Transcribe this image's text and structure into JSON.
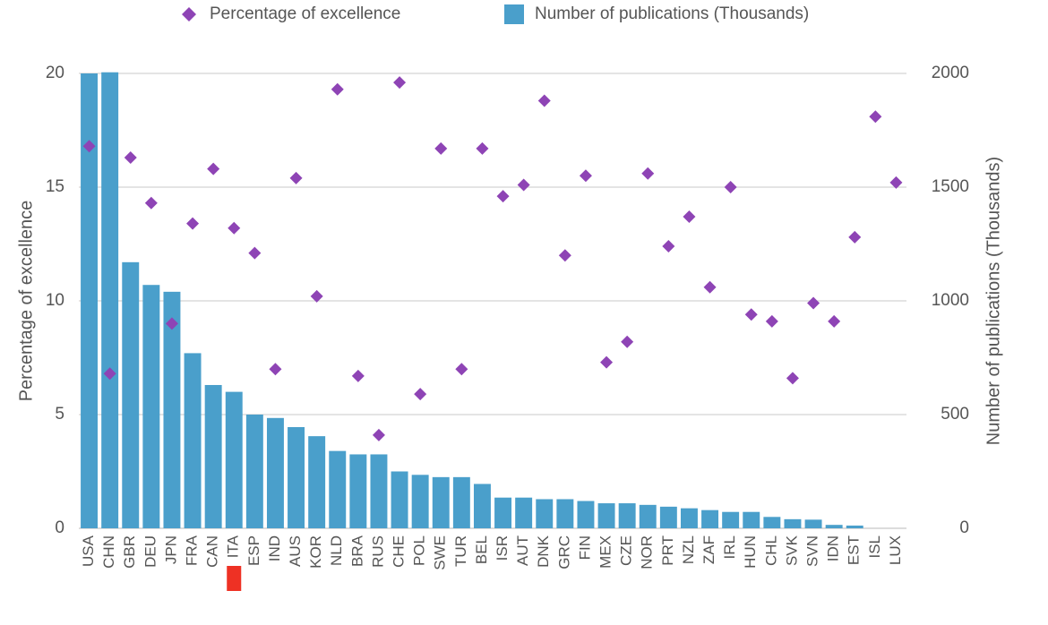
{
  "chart_data": {
    "type": "bar",
    "categories": [
      "USA",
      "CHN",
      "GBR",
      "DEU",
      "JPN",
      "FRA",
      "CAN",
      "ITA",
      "ESP",
      "IND",
      "AUS",
      "KOR",
      "NLD",
      "BRA",
      "RUS",
      "CHE",
      "POL",
      "SWE",
      "TUR",
      "BEL",
      "ISR",
      "AUT",
      "DNK",
      "GRC",
      "FIN",
      "MEX",
      "CZE",
      "NOR",
      "PRT",
      "NZL",
      "ZAF",
      "IRL",
      "HUN",
      "CHL",
      "SVK",
      "SVN",
      "IDN",
      "EST",
      "ISL",
      "LUX"
    ],
    "series": [
      {
        "name": "Number of publications (Thousands)",
        "kind": "bar",
        "axis": "right",
        "color": "#4A9FCB",
        "values": [
          2000,
          2005,
          1170,
          1070,
          1040,
          770,
          630,
          600,
          500,
          485,
          445,
          405,
          340,
          325,
          325,
          250,
          235,
          225,
          225,
          195,
          135,
          135,
          128,
          128,
          120,
          110,
          110,
          103,
          95,
          88,
          80,
          72,
          72,
          50,
          40,
          38,
          15,
          12,
          0,
          0
        ]
      },
      {
        "name": "Percentage of excellence",
        "kind": "scatter",
        "axis": "left",
        "color": "#8E44B5",
        "values": [
          16.8,
          6.8,
          16.3,
          14.3,
          9.0,
          13.4,
          15.8,
          13.2,
          12.1,
          7.0,
          15.4,
          10.2,
          19.3,
          6.7,
          4.1,
          19.6,
          5.9,
          16.7,
          7.0,
          16.7,
          14.6,
          15.1,
          18.8,
          12.0,
          15.5,
          7.3,
          8.2,
          15.6,
          12.4,
          13.7,
          10.6,
          15.0,
          9.4,
          9.1,
          6.6,
          9.9,
          9.1,
          12.8,
          18.1,
          15.2
        ]
      }
    ],
    "left_axis": {
      "label": "Percentage of excellence",
      "ylim": [
        0,
        20
      ],
      "ticks": [
        0,
        5,
        10,
        15,
        20
      ],
      "tick_labels": [
        "0",
        "5",
        "10",
        "15",
        "20"
      ]
    },
    "right_axis": {
      "label": "Number of publications (Thousands)",
      "ylim": [
        0,
        2000
      ],
      "ticks": [
        0,
        500,
        1000,
        1500,
        2000
      ],
      "tick_labels": [
        "0",
        "500",
        "1000",
        "1500",
        "2000"
      ]
    },
    "highlight": {
      "category": "ITA",
      "color": "#EE3124"
    },
    "legend": {
      "position": "top",
      "items": [
        {
          "label": "Percentage of excellence",
          "marker": "diamond",
          "color": "#8E44B5"
        },
        {
          "label": "Number of publications (Thousands)",
          "marker": "square",
          "color": "#4A9FCB"
        }
      ]
    },
    "grid": true
  }
}
